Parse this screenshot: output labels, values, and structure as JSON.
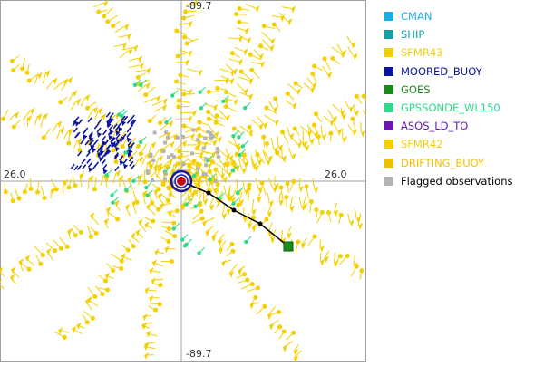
{
  "axes": {
    "top": "-89.7",
    "bottom": "-89.7",
    "left": "26.0",
    "right": "26.0"
  },
  "legend": [
    {
      "label": "CMAN",
      "color": "#1ab0e8",
      "text_color": "#1ab0e8"
    },
    {
      "label": "SHIP",
      "color": "#14a0a0",
      "text_color": "#14a0a0"
    },
    {
      "label": "SFMR43",
      "color": "#f5d000",
      "text_color": "#f5d000"
    },
    {
      "label": "MOORED_BUOY",
      "color": "#0a12a0",
      "text_color": "#0a12a0"
    },
    {
      "label": "GOES",
      "color": "#1a8c1a",
      "text_color": "#1a8c1a"
    },
    {
      "label": "GPSSONDE_WL150",
      "color": "#2adc8c",
      "text_color": "#2adc8c"
    },
    {
      "label": "ASOS_LD_TO",
      "color": "#6a1ab0",
      "text_color": "#6a1ab0"
    },
    {
      "label": "SFMR42",
      "color": "#f5d000",
      "text_color": "#f5d000"
    },
    {
      "label": "DRIFTING_BUOY",
      "color": "#f0c000",
      "text_color": "#f0c000"
    },
    {
      "label": "Flagged observations",
      "color": "#b4b4b4",
      "text_color": "#000000"
    }
  ],
  "colors": {
    "sfmr": "#f5d000",
    "buoy": "#0a12a0",
    "gps": "#2adc8c",
    "flagged": "#b4b4b4",
    "track": "#000000",
    "center_ring": "#1a1aa0",
    "center_fill": "#c01010",
    "track_end": "#1a8c1a",
    "axis_line": "#a0a0a0"
  }
}
